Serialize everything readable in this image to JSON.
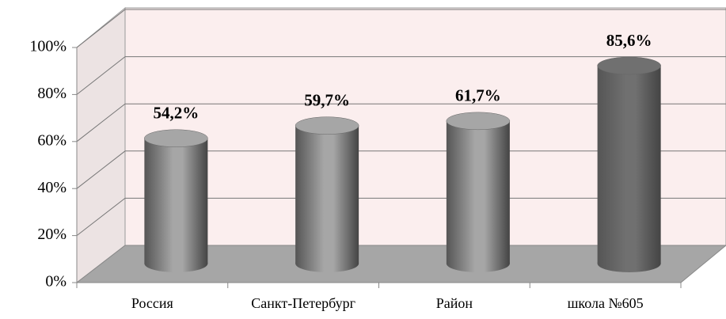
{
  "chart_data": {
    "type": "bar",
    "categories": [
      "Россия",
      "Санкт-Петербург",
      "Район",
      "школа №605"
    ],
    "values": [
      54.2,
      59.7,
      61.7,
      85.6
    ],
    "value_labels": [
      "54,2%",
      "59,7%",
      "61,7%",
      "85,6%"
    ],
    "colors": [
      "#a6a6a6",
      "#a6a6a6",
      "#a6a6a6",
      "#707070"
    ],
    "ylim": [
      0,
      100
    ],
    "yticks": [
      {
        "value": 0,
        "label": "0%"
      },
      {
        "value": 20,
        "label": "20%"
      },
      {
        "value": 40,
        "label": "40%"
      },
      {
        "value": 60,
        "label": "60%"
      },
      {
        "value": 80,
        "label": "80%"
      },
      {
        "value": 100,
        "label": "100%"
      }
    ],
    "grid": true
  }
}
